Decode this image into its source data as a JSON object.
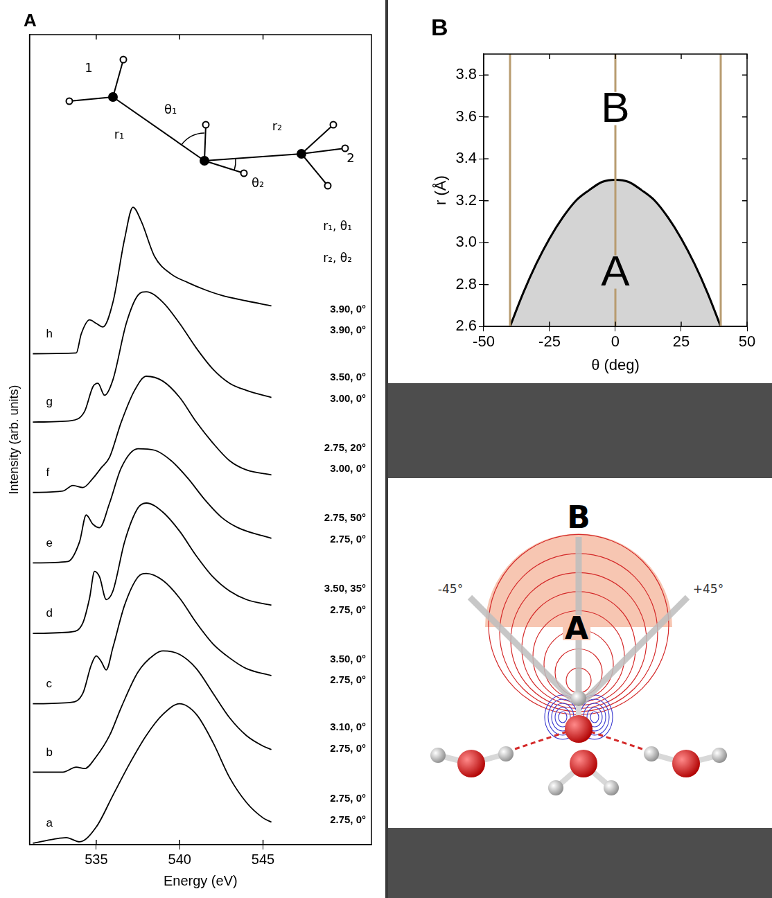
{
  "chart_data": [
    {
      "type": "line",
      "panel": "A",
      "xlabel": "Energy (eV)",
      "ylabel": "Intensity (arb. units)",
      "xlim": [
        531,
        551.5
      ],
      "xticks": [
        535,
        540,
        545
      ],
      "ylim": [
        0,
        11.5
      ],
      "tick_labels": "x",
      "color": "#000000",
      "header": [
        "r₁, θ₁",
        "r₂, θ₂"
      ],
      "series": [
        {
          "name": "a",
          "params": [
            "2.75, 0°",
            "2.75, 0°"
          ],
          "x": [
            531.2,
            532.5,
            533.2,
            534,
            535,
            536,
            537,
            538,
            539,
            540,
            541,
            542,
            543,
            544,
            545,
            545.5
          ],
          "values": [
            0.02,
            0.08,
            0.1,
            0.04,
            0.25,
            0.7,
            1.15,
            1.55,
            1.85,
            2.0,
            1.85,
            1.45,
            0.95,
            0.6,
            0.38,
            0.32
          ]
        },
        {
          "name": "b",
          "params": [
            "3.10, 0°",
            "2.75, 0°"
          ],
          "x": [
            531.2,
            533,
            533.8,
            534.3,
            535,
            535.8,
            536.5,
            537.5,
            538.5,
            539,
            540,
            541,
            542,
            543,
            544,
            545,
            545.5
          ],
          "values": [
            1.03,
            1.03,
            1.1,
            1.08,
            1.25,
            1.55,
            1.95,
            2.45,
            2.7,
            2.75,
            2.7,
            2.5,
            2.15,
            1.8,
            1.55,
            1.4,
            1.35
          ]
        },
        {
          "name": "c",
          "params": [
            "3.50, 0°",
            "2.75, 0°"
          ],
          "x": [
            531.2,
            533.5,
            534.2,
            534.7,
            535,
            535.3,
            535.6,
            536,
            536.7,
            537.5,
            538,
            539,
            540,
            541,
            542,
            543,
            544,
            545.5
          ],
          "values": [
            2.0,
            2.02,
            2.15,
            2.55,
            2.68,
            2.6,
            2.48,
            2.8,
            3.4,
            3.8,
            3.85,
            3.75,
            3.5,
            3.15,
            2.85,
            2.65,
            2.5,
            2.4
          ]
        },
        {
          "name": "d",
          "params": [
            "3.50, 35°",
            "2.75, 0°"
          ],
          "x": [
            531.2,
            533.5,
            534.2,
            534.6,
            534.9,
            535.2,
            535.6,
            536,
            536.7,
            537.5,
            538,
            539,
            540,
            541,
            542,
            543,
            544,
            545.5
          ],
          "values": [
            3.0,
            3.02,
            3.15,
            3.5,
            3.88,
            3.8,
            3.48,
            3.6,
            4.3,
            4.78,
            4.85,
            4.72,
            4.45,
            4.1,
            3.8,
            3.6,
            3.48,
            3.4
          ]
        },
        {
          "name": "e",
          "params": [
            "2.75, 50°",
            "2.75, 0°"
          ],
          "x": [
            531.2,
            533.3,
            534,
            534.4,
            534.8,
            535.2,
            535.8,
            536.5,
            537.5,
            538.5,
            539.5,
            540.5,
            541.5,
            542.5,
            543.5,
            545.5
          ],
          "values": [
            4.0,
            4.02,
            4.3,
            4.68,
            4.55,
            4.5,
            4.85,
            5.35,
            5.62,
            5.6,
            5.45,
            5.2,
            4.9,
            4.65,
            4.5,
            4.35
          ]
        },
        {
          "name": "f",
          "params": [
            "2.75, 20°",
            "3.00, 0°"
          ],
          "x": [
            531.2,
            533,
            533.6,
            534.2,
            534.8,
            535.3,
            535.8,
            536.5,
            537.3,
            538,
            539,
            540,
            541,
            542,
            543,
            544,
            545.5
          ],
          "values": [
            5.0,
            5.02,
            5.1,
            5.07,
            5.2,
            5.35,
            5.5,
            6.0,
            6.45,
            6.65,
            6.58,
            6.35,
            6.0,
            5.7,
            5.45,
            5.32,
            5.25
          ]
        },
        {
          "name": "g",
          "params": [
            "3.50, 0°",
            "3.00, 0°"
          ],
          "x": [
            531.2,
            533.5,
            534.3,
            534.8,
            535.1,
            535.5,
            536,
            536.8,
            537.5,
            538,
            539,
            540,
            541,
            542,
            543,
            544,
            545.5
          ],
          "values": [
            6.0,
            6.02,
            6.15,
            6.5,
            6.55,
            6.38,
            6.6,
            7.4,
            7.8,
            7.85,
            7.7,
            7.4,
            7.05,
            6.75,
            6.55,
            6.45,
            6.35
          ]
        },
        {
          "name": "h",
          "params": [
            "3.90, 0°",
            "3.90, 0°"
          ],
          "x": [
            531.2,
            533.8,
            534.1,
            534.6,
            535,
            535.4,
            536,
            536.7,
            537.2,
            537.7,
            538.5,
            539.5,
            540.5,
            541.5,
            542.5,
            544,
            545.5
          ],
          "values": [
            6.97,
            6.98,
            7.25,
            7.45,
            7.4,
            7.35,
            7.7,
            8.6,
            9.05,
            8.85,
            8.35,
            8.1,
            7.98,
            7.88,
            7.8,
            7.72,
            7.65
          ]
        }
      ]
    },
    {
      "type": "line",
      "panel": "B",
      "xlabel": "θ (deg)",
      "ylabel": "r (Å)",
      "xlim": [
        -50,
        50
      ],
      "xticks": [
        -50,
        -25,
        0,
        25,
        50
      ],
      "ylim": [
        2.6,
        3.9
      ],
      "yticks": [
        2.6,
        2.8,
        {
          "value": 3,
          "label": "3.0"
        },
        3.2,
        3.4,
        3.6,
        3.8
      ],
      "series": [
        {
          "color": "#000000",
          "x": [
            -40,
            -35,
            -30,
            -25,
            -20,
            -15,
            -10,
            -5,
            0,
            5,
            10,
            15,
            20,
            25,
            30,
            35,
            40
          ],
          "values": [
            2.6,
            2.76,
            2.9,
            3.02,
            3.12,
            3.2,
            3.25,
            3.29,
            3.3,
            3.29,
            3.25,
            3.2,
            3.12,
            3.02,
            2.9,
            2.76,
            2.6
          ]
        }
      ],
      "vlines": [
        -40,
        0,
        40
      ],
      "regions": [
        "A",
        "B"
      ]
    }
  ],
  "molecule_diagram": {
    "molecule_1": "1",
    "molecule_2": "2",
    "r1": "r₁",
    "theta1": "θ₁",
    "r2": "r₂",
    "theta2": "θ₂"
  },
  "water_diagram": {
    "outer": "B",
    "inner": "A",
    "left_angle": "-45°",
    "right_angle": "+45°"
  }
}
